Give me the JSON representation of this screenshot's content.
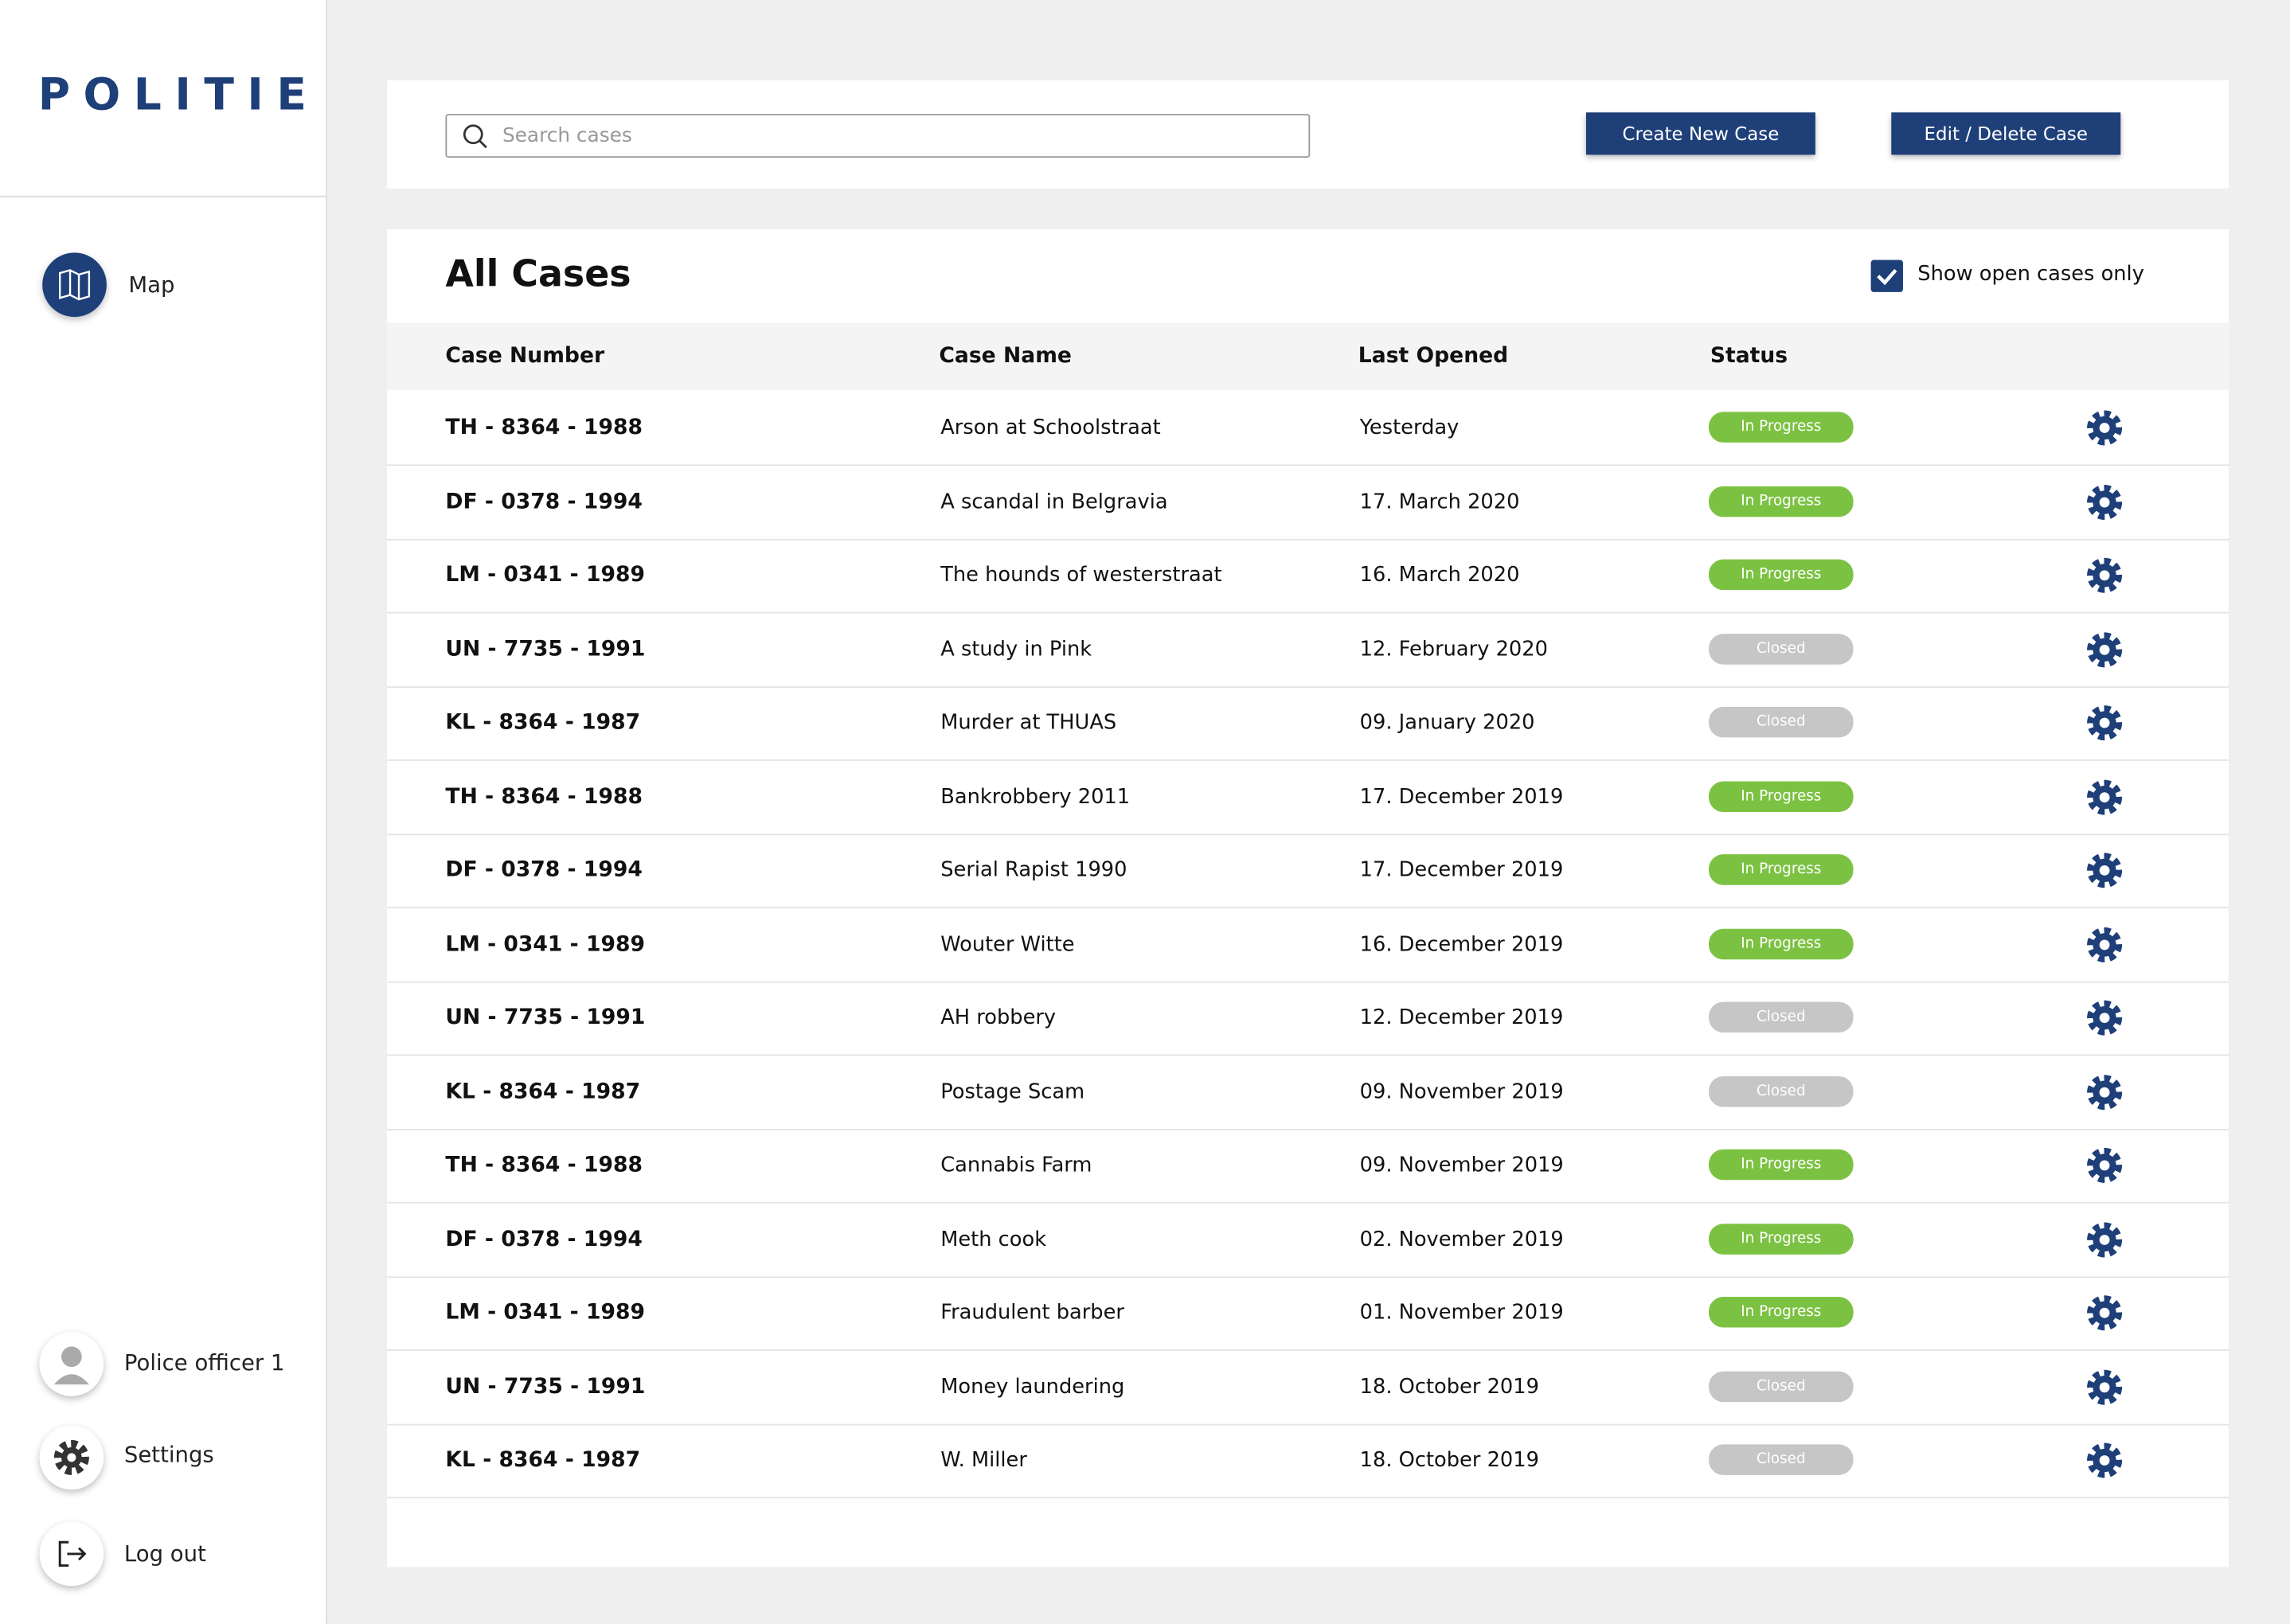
{
  "sidebar": {
    "brand": "POLITIE",
    "nav": [
      {
        "label": "Map"
      }
    ],
    "user": "Police officer 1",
    "settings": "Settings",
    "logout": "Log out"
  },
  "toolbar": {
    "search_placeholder": "Search cases",
    "buttons": [
      "Create New Case",
      "Edit / Delete Case"
    ]
  },
  "cases": {
    "title": "All Cases",
    "filter_label": "Show open cases only",
    "filter_checked": true,
    "columns": [
      "Case Number",
      "Case Name",
      "Last Opened",
      "Status"
    ],
    "rows": [
      {
        "number": "TH - 8364 - 1988",
        "name": "Arson at Schoolstraat",
        "last_opened": "Yesterday",
        "status": "In Progress",
        "status_color": "#7cc242"
      },
      {
        "number": "DF - 0378 - 1994",
        "name": "A scandal in Belgravia",
        "last_opened": "17. March 2020",
        "status": "In Progress",
        "status_color": "#7cc242"
      },
      {
        "number": "LM - 0341 - 1989",
        "name": "The hounds of westerstraat",
        "last_opened": "16. March 2020",
        "status": "In Progress",
        "status_color": "#7cc242"
      },
      {
        "number": "UN - 7735 - 1991",
        "name": "A study in Pink",
        "last_opened": "12. February 2020",
        "status": "Closed",
        "status_color": "#c6c6c6"
      },
      {
        "number": "KL - 8364 - 1987",
        "name": "Murder at THUAS",
        "last_opened": "09. January 2020",
        "status": "Closed",
        "status_color": "#c6c6c6"
      },
      {
        "number": "TH - 8364 - 1988",
        "name": "Bankrobbery 2011",
        "last_opened": "17. December 2019",
        "status": "In Progress",
        "status_color": "#7cc242"
      },
      {
        "number": "DF - 0378 - 1994",
        "name": "Serial Rapist 1990",
        "last_opened": "17. December 2019",
        "status": "In Progress",
        "status_color": "#7cc242"
      },
      {
        "number": "LM - 0341 - 1989",
        "name": "Wouter Witte",
        "last_opened": "16. December 2019",
        "status": "In Progress",
        "status_color": "#7cc242"
      },
      {
        "number": "UN - 7735 - 1991",
        "name": "AH robbery",
        "last_opened": "12. December 2019",
        "status": "Closed",
        "status_color": "#c6c6c6"
      },
      {
        "number": "KL - 8364 - 1987",
        "name": "Postage Scam",
        "last_opened": "09. November 2019",
        "status": "Closed",
        "status_color": "#c6c6c6"
      },
      {
        "number": "TH - 8364 - 1988",
        "name": "Cannabis Farm",
        "last_opened": "09. November 2019",
        "status": "In Progress",
        "status_color": "#7cc242"
      },
      {
        "number": "DF - 0378 - 1994",
        "name": "Meth cook",
        "last_opened": "02. November 2019",
        "status": "In Progress",
        "status_color": "#7cc242"
      },
      {
        "number": "LM - 0341 - 1989",
        "name": "Fraudulent barber",
        "last_opened": "01. November 2019",
        "status": "In Progress",
        "status_color": "#7cc242"
      },
      {
        "number": "UN - 7735 - 1991",
        "name": "Money laundering",
        "last_opened": "18. October 2019",
        "status": "Closed",
        "status_color": "#c6c6c6"
      },
      {
        "number": "KL - 8364 - 1987",
        "name": "W. Miller",
        "last_opened": "18. October 2019",
        "status": "Closed",
        "status_color": "#c6c6c6"
      }
    ]
  }
}
